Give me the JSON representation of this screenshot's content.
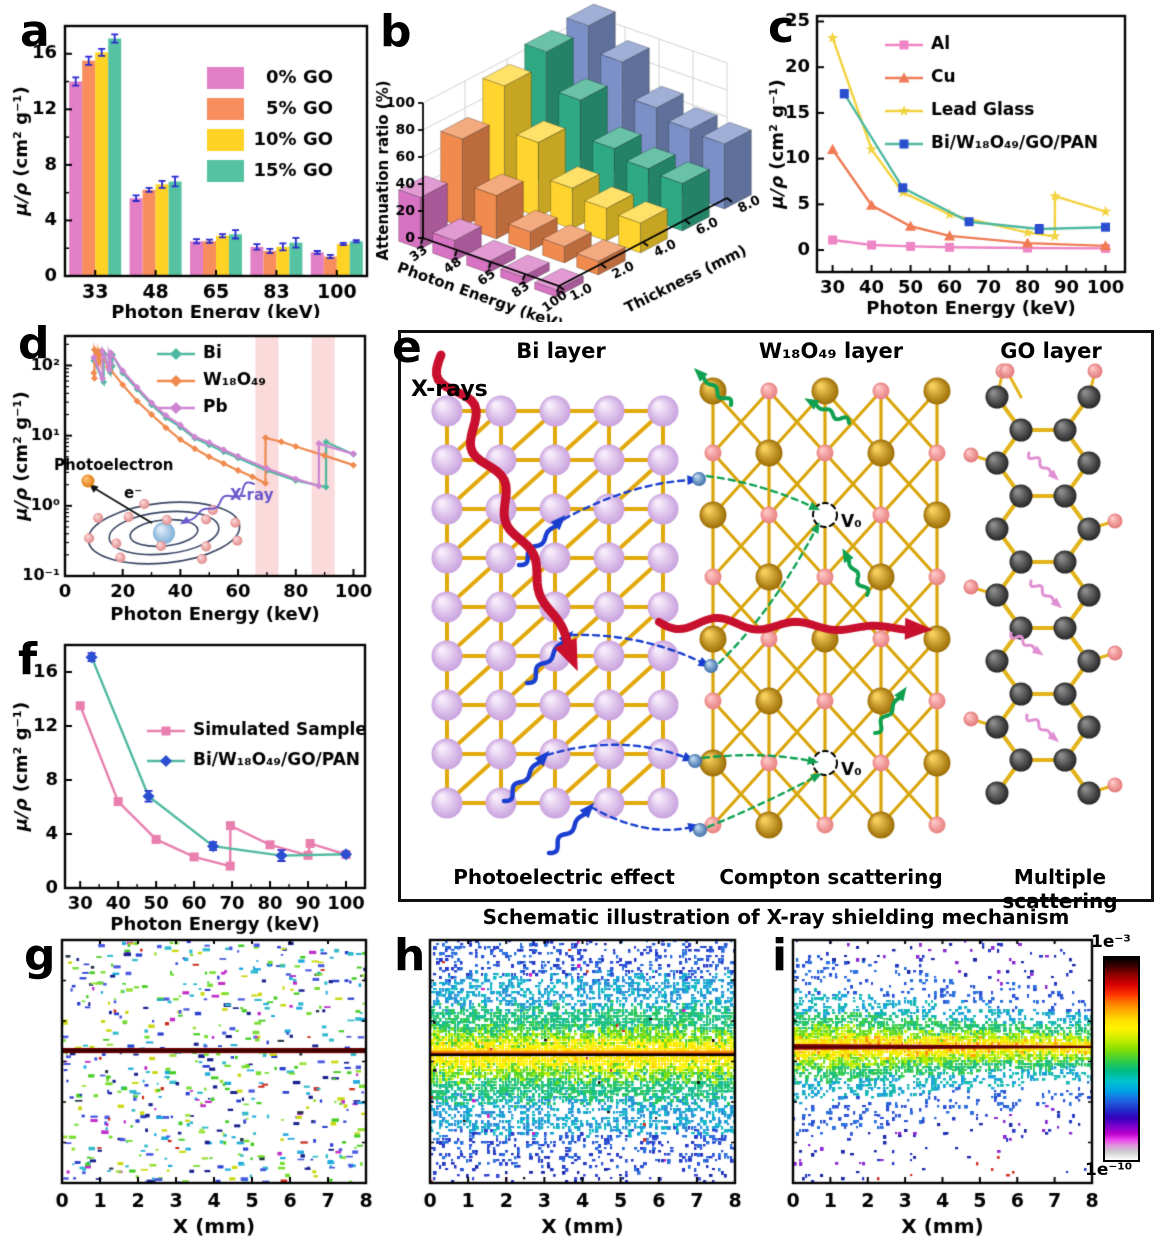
{
  "panels": {
    "a": {
      "letter": "a"
    },
    "b": {
      "letter": "b"
    },
    "c": {
      "letter": "c"
    },
    "d": {
      "letter": "d"
    },
    "e": {
      "letter": "e"
    },
    "f": {
      "letter": "f"
    },
    "g": {
      "letter": "g"
    },
    "h": {
      "letter": "h"
    },
    "i": {
      "letter": "i"
    }
  },
  "chart_data": [
    {
      "panel": "a",
      "type": "bar",
      "xlabel": "Photon Energy (keV)",
      "ylabel": "μ/ρ (cm² g⁻¹)",
      "categories": [
        33,
        48,
        65,
        83,
        100
      ],
      "ylim": [
        0,
        18
      ],
      "yticks": [
        0,
        4,
        8,
        12,
        16
      ],
      "error_color": "#2a2ad0",
      "series": [
        {
          "name": "0% GO",
          "color": "#e27fc5",
          "values": [
            14.0,
            5.6,
            2.5,
            2.1,
            1.7
          ],
          "errors": [
            0.3,
            0.2,
            0.15,
            0.2,
            0.1
          ]
        },
        {
          "name": "5% GO",
          "color": "#f88d5e",
          "values": [
            15.5,
            6.2,
            2.5,
            1.8,
            1.4
          ],
          "errors": [
            0.3,
            0.15,
            0.12,
            0.15,
            0.12
          ]
        },
        {
          "name": "10% GO",
          "color": "#ffd226",
          "values": [
            16.1,
            6.6,
            2.9,
            2.1,
            2.3
          ],
          "errors": [
            0.25,
            0.25,
            0.12,
            0.25,
            0.08
          ]
        },
        {
          "name": "15% GO",
          "color": "#55c3a2",
          "values": [
            17.1,
            6.8,
            3.0,
            2.4,
            2.5
          ],
          "errors": [
            0.3,
            0.35,
            0.3,
            0.35,
            0.08
          ]
        }
      ]
    },
    {
      "panel": "b",
      "type": "bar3d",
      "zlabel": "Attenuation ratio (%)",
      "xlabel": "Photon Energy (keV)",
      "depth_label": "Thickness (mm)",
      "x_categories": [
        33,
        48,
        65,
        83,
        100
      ],
      "depth_categories": [
        "1.0",
        "2.0",
        "4.0",
        "6.0",
        "8.0"
      ],
      "zlim": [
        0,
        100
      ],
      "zticks": [
        0,
        20,
        40,
        60,
        80,
        100
      ],
      "series": [
        {
          "name": "1.0",
          "color": "#d873c3",
          "values": [
            38,
            15,
            8,
            6,
            5
          ]
        },
        {
          "name": "2.0",
          "color": "#f08a4e",
          "values": [
            65,
            32,
            14,
            12,
            10
          ]
        },
        {
          "name": "4.0",
          "color": "#ffd42e",
          "values": [
            88,
            55,
            30,
            24,
            22
          ]
        },
        {
          "name": "6.0",
          "color": "#2fa984",
          "values": [
            97,
            70,
            43,
            37,
            35
          ]
        },
        {
          "name": "8.0",
          "color": "#7b90c7",
          "values": [
            100,
            82,
            57,
            50,
            48
          ]
        }
      ]
    },
    {
      "panel": "c",
      "type": "line",
      "xlabel": "Photon Energy (keV)",
      "ylabel": "μ/ρ (cm² g⁻¹)",
      "xlim": [
        26,
        105
      ],
      "xticks": [
        30,
        40,
        50,
        60,
        70,
        80,
        90,
        100
      ],
      "ylim": [
        -2.4,
        25.6
      ],
      "yticks": [
        0,
        5,
        10,
        15,
        20,
        25
      ],
      "error_color": "#2a2ad0",
      "series": [
        {
          "name": "Al",
          "color": "#ee85c5",
          "marker": "square",
          "x": [
            30,
            40,
            50,
            60,
            80,
            100
          ],
          "y": [
            1.1,
            0.55,
            0.4,
            0.3,
            0.22,
            0.18
          ]
        },
        {
          "name": "Cu",
          "color": "#f07b55",
          "marker": "triangle",
          "x": [
            30,
            40,
            50,
            60,
            80,
            100
          ],
          "y": [
            11.0,
            4.9,
            2.6,
            1.55,
            0.76,
            0.46
          ]
        },
        {
          "name": "Lead Glass",
          "color": "#f2d23d",
          "marker": "pentagon",
          "x": [
            30,
            40,
            48,
            60,
            80,
            87,
            87.05,
            100
          ],
          "y": [
            23.2,
            11.0,
            6.3,
            3.9,
            1.9,
            1.5,
            5.9,
            4.2
          ]
        },
        {
          "name": "Bi/W₁₈O₄₉/GO/PAN",
          "color": "#4fb9a0",
          "marker": "square",
          "marker_color": "#2a4fd0",
          "x": [
            33,
            48,
            65,
            83,
            100
          ],
          "y": [
            17.1,
            6.8,
            3.1,
            2.3,
            2.5
          ],
          "errors": [
            0.4,
            0.35,
            0.25,
            0.45,
            0.15
          ]
        }
      ]
    },
    {
      "panel": "d",
      "type": "line",
      "yscale": "log",
      "xlabel": "Photon Energy (keV)",
      "ylabel": "μ/ρ (cm² g⁻¹)",
      "xlim": [
        0,
        104
      ],
      "xticks": [
        0,
        20,
        40,
        60,
        80,
        100
      ],
      "ytick_labels": [
        "10⁻¹",
        "10⁰",
        "10¹",
        "10²"
      ],
      "highlight_bands_kev": [
        [
          66,
          74
        ],
        [
          85.5,
          93.5
        ]
      ],
      "band_color": "#fadada",
      "series": [
        {
          "name": "Bi",
          "color": "#4fb9a0",
          "x": [
            10,
            13.4,
            13.42,
            15.7,
            15.72,
            16.4,
            16.42,
            20,
            25,
            30,
            35,
            40,
            45,
            50,
            55,
            60,
            70,
            80,
            90.5,
            90.52,
            100
          ],
          "y": [
            118,
            58,
            148,
            80,
            128,
            98,
            142,
            78,
            46,
            27.5,
            18,
            13.2,
            9.2,
            7.4,
            5.9,
            4.8,
            3.2,
            2.3,
            1.85,
            8.1,
            5.45
          ]
        },
        {
          "name": "W₁₈O₄₉",
          "color": "#f08a4e",
          "x": [
            10,
            10.2,
            10.22,
            11.5,
            11.52,
            12.1,
            12.12,
            15,
            20,
            25,
            30,
            35,
            40,
            45,
            50,
            55,
            60,
            65,
            69.5,
            69.52,
            75,
            80,
            90,
            100
          ],
          "y": [
            78,
            66,
            168,
            110,
            152,
            118,
            158,
            96,
            53,
            31,
            20,
            13,
            8.8,
            6.5,
            5.0,
            4.0,
            3.2,
            2.6,
            2.1,
            9.3,
            8.2,
            7.0,
            5.2,
            3.8
          ]
        },
        {
          "name": "Pb",
          "color": "#cd85d2",
          "x": [
            10,
            13.0,
            13.02,
            15.2,
            15.22,
            15.86,
            15.88,
            20,
            25,
            30,
            35,
            40,
            45,
            50,
            55,
            60,
            70,
            80,
            88,
            88.02,
            100
          ],
          "y": [
            130,
            65,
            160,
            88,
            140,
            105,
            152,
            84,
            49,
            29.5,
            19.3,
            14.2,
            9.6,
            8.0,
            6.3,
            5.1,
            3.4,
            2.42,
            1.92,
            7.7,
            5.5
          ]
        }
      ],
      "inset": {
        "photoelectron": "Photoelectron",
        "electron": "e⁻",
        "xray": "X-ray"
      }
    },
    {
      "panel": "f",
      "type": "line",
      "xlabel": "Photon Energy (keV)",
      "ylabel": "μ/ρ (cm² g⁻¹)",
      "xlim": [
        26,
        105
      ],
      "xticks": [
        30,
        40,
        50,
        60,
        70,
        80,
        90,
        100
      ],
      "ylim": [
        0,
        18
      ],
      "yticks": [
        0,
        4,
        8,
        12,
        16
      ],
      "error_color": "#2a2ad0",
      "series": [
        {
          "name": "Simulated Sample",
          "color": "#e87fae",
          "marker": "square",
          "x": [
            30,
            40,
            50,
            60,
            69.5,
            69.55,
            80,
            90,
            90.55,
            100
          ],
          "y": [
            13.5,
            6.4,
            3.6,
            2.3,
            1.62,
            4.62,
            3.2,
            2.42,
            3.3,
            2.48
          ]
        },
        {
          "name": "Bi/W₁₈O₄₉/GO/PAN",
          "color": "#4fb9a0",
          "marker": "diamond",
          "marker_color": "#2a4fd0",
          "x": [
            33,
            48,
            65,
            83,
            100
          ],
          "y": [
            17.1,
            6.8,
            3.1,
            2.4,
            2.5
          ],
          "errors": [
            0.3,
            0.4,
            0.3,
            0.4,
            0.15
          ]
        }
      ]
    },
    {
      "panel": "g",
      "type": "heatmap",
      "style": "sparse",
      "xlabel": "X (mm)",
      "xlim": [
        0,
        8
      ],
      "xticks": [
        0,
        1,
        2,
        3,
        4,
        5,
        6,
        7,
        8
      ],
      "beam_y_frac": 0.455
    },
    {
      "panel": "h",
      "type": "heatmap",
      "style": "dense",
      "xlabel": "X (mm)",
      "xlim": [
        0,
        8
      ],
      "xticks": [
        0,
        1,
        2,
        3,
        4,
        5,
        6,
        7,
        8
      ],
      "beam_y_frac": 0.47
    },
    {
      "panel": "i",
      "type": "heatmap",
      "style": "taper",
      "xlabel": "X (mm)",
      "xlim": [
        0,
        8
      ],
      "xticks": [
        0,
        1,
        2,
        3,
        4,
        5,
        6,
        7,
        8
      ],
      "beam_y_frac": 0.44,
      "colorbar": {
        "top": "1e⁻³",
        "bottom": "1e⁻¹⁰"
      }
    }
  ],
  "schematic": {
    "xrays_label": "X-rays",
    "layers": [
      "Bi layer",
      "W₁₈O₄₉ layer",
      "GO layer"
    ],
    "mechanisms": [
      "Photoelectric effect",
      "Compton scattering",
      "Multiple scattering"
    ],
    "vacancy_label": "V₀",
    "caption": "Schematic illustration of X-ray shielding mechanism"
  }
}
